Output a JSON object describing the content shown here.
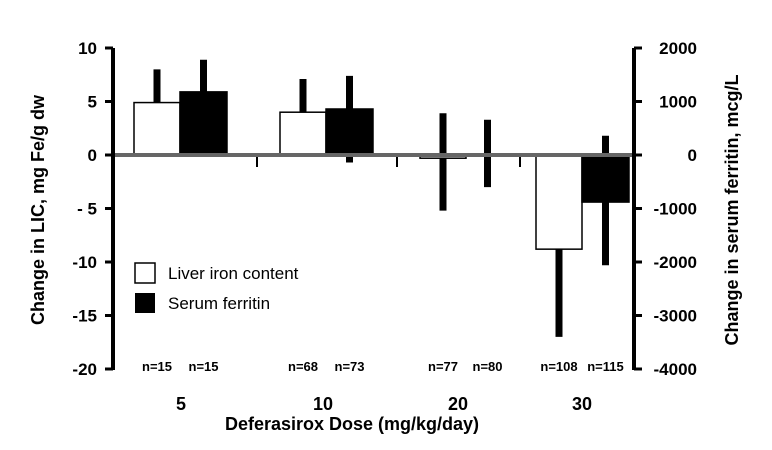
{
  "chart_data": {
    "type": "bar",
    "title": "",
    "xlabel": "Deferasirox  Dose (mg/kg/day)",
    "ylabel": "Change in LIC, mg Fe/g dw",
    "y2label": "Change in serum ferritin, mcg/L",
    "ylim": [
      -20,
      10
    ],
    "y2lim": [
      -4000,
      2000
    ],
    "yticks": [
      "10",
      "5",
      "0",
      "- 5",
      "-10",
      "-15",
      "-20"
    ],
    "yticks_values": [
      10,
      5,
      0,
      -5,
      -10,
      -15,
      -20
    ],
    "y2ticks": [
      "2000",
      "1000",
      "0",
      "-1000",
      "-2000",
      "-3000",
      "-4000"
    ],
    "y2ticks_values": [
      2000,
      1000,
      0,
      -1000,
      -2000,
      -3000,
      -4000
    ],
    "categories": [
      "5",
      "10",
      "20",
      "30"
    ],
    "legend_position": "bottom-left",
    "series": [
      {
        "name": "Liver iron content",
        "axis": "left",
        "color": "#ffffff",
        "values": [
          4.9,
          4.0,
          -0.3,
          -8.8
        ],
        "err_high": [
          8.0,
          7.1,
          3.9,
          -8.8
        ],
        "err_low": [
          4.9,
          4.0,
          -5.2,
          -17.0
        ],
        "n": [
          "n=15",
          "n=68",
          "n=77",
          "n=108"
        ]
      },
      {
        "name": "Serum ferritin",
        "axis": "right",
        "color": "#000000",
        "values": [
          1180,
          860,
          20,
          -880
        ],
        "err_high": [
          1780,
          1480,
          660,
          360
        ],
        "err_low": [
          1180,
          -140,
          -600,
          -2060
        ],
        "n": [
          "n=15",
          "n=73",
          "n=80",
          "n=115"
        ]
      }
    ]
  }
}
